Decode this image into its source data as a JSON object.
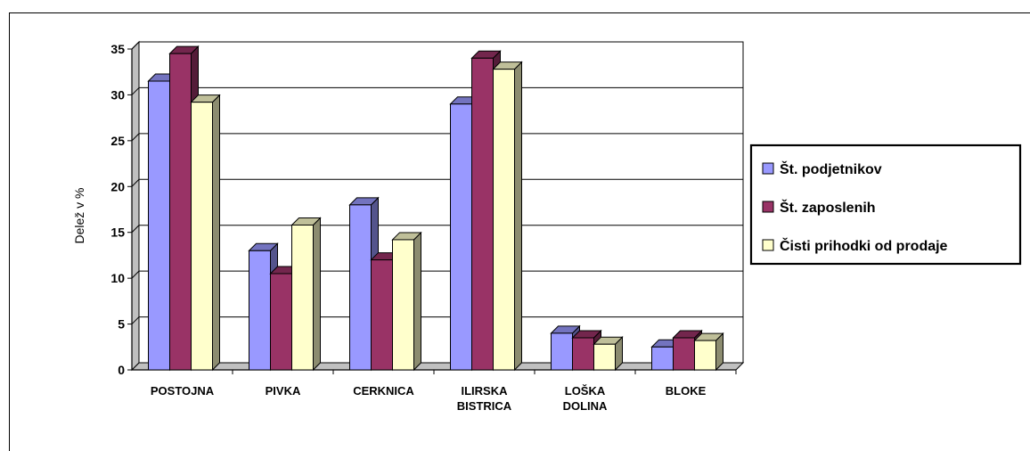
{
  "chart_data": {
    "type": "bar",
    "title": "",
    "xlabel": "",
    "ylabel": "Delež v %",
    "ylim": [
      0,
      35
    ],
    "yticks": [
      0,
      5,
      10,
      15,
      20,
      25,
      30,
      35
    ],
    "grid": true,
    "legend_position": "right",
    "three_d": true,
    "categories": [
      [
        "POSTOJNA"
      ],
      [
        "PIVKA"
      ],
      [
        "CERKNICA"
      ],
      [
        "ILIRSKA",
        "BISTRICA"
      ],
      [
        "LOŠKA",
        "DOLINA"
      ],
      [
        "BLOKE"
      ]
    ],
    "series": [
      {
        "name": "Št. podjetnikov",
        "color": "#9999ff",
        "values": [
          31.5,
          13,
          18,
          29,
          4,
          2.5
        ]
      },
      {
        "name": "Št. zaposlenih",
        "color": "#993366",
        "values": [
          34.5,
          10.5,
          12,
          34,
          3.5,
          3.5
        ]
      },
      {
        "name": "Čisti prihodki od prodaje",
        "color": "#ffffcc",
        "values": [
          29.2,
          15.8,
          14.2,
          32.8,
          2.8,
          3.2
        ]
      }
    ]
  }
}
